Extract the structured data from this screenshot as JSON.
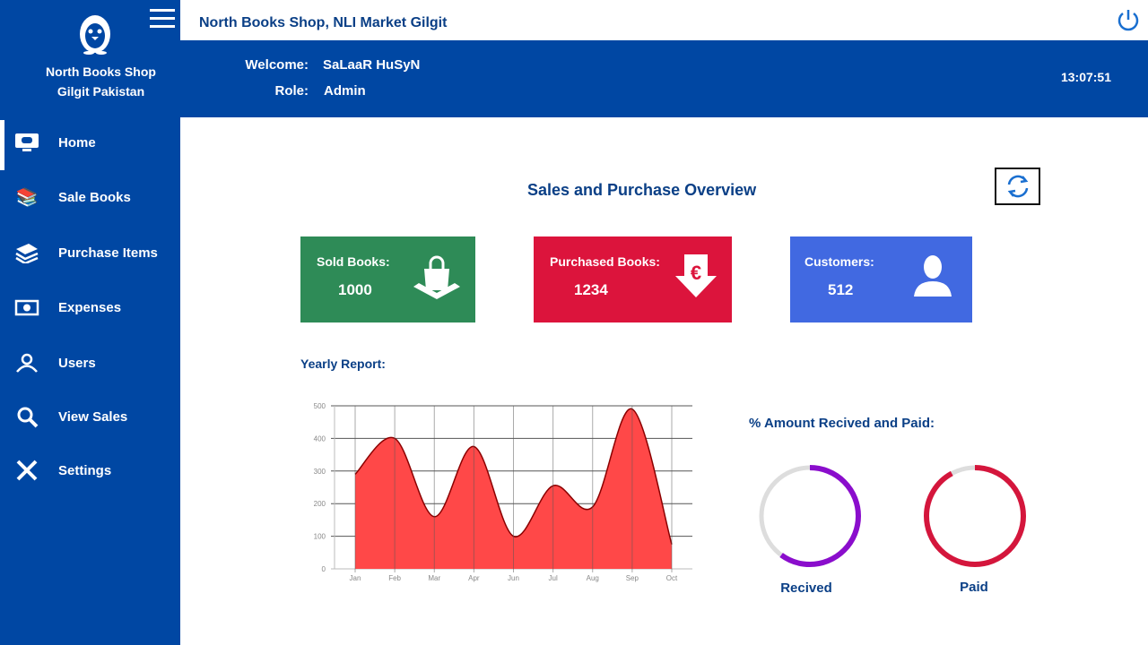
{
  "sidebar": {
    "brand_line1": "North Books Shop",
    "brand_line2": "Gilgit Pakistan",
    "items": [
      {
        "label": "Home",
        "icon": "monitor-icon"
      },
      {
        "label": "Sale Books",
        "icon": "books-icon"
      },
      {
        "label": "Purchase Items",
        "icon": "book-stack-icon"
      },
      {
        "label": "Expenses",
        "icon": "money-icon"
      },
      {
        "label": "Users",
        "icon": "users-icon"
      },
      {
        "label": "View Sales",
        "icon": "search-icon"
      },
      {
        "label": "Settings",
        "icon": "tools-icon"
      }
    ]
  },
  "topbar": {
    "shop_name": "North Books Shop, NLI Market Gilgit"
  },
  "header": {
    "welcome_label": "Welcome:",
    "welcome_value": "SaLaaR HuSyN",
    "role_label": "Role:",
    "role_value": "Admin",
    "time": "13:07:51"
  },
  "main": {
    "title": "Sales and Purchase Overview",
    "cards": [
      {
        "label": "Sold Books:",
        "value": "1000",
        "color": "#2e8b57"
      },
      {
        "label": "Purchased Books:",
        "value": "1234",
        "color": "#dc143c"
      },
      {
        "label": "Customers:",
        "value": "512",
        "color": "#4169e1"
      }
    ],
    "yearly_label": "Yearly Report:",
    "amount_label": "% Amount Recived and Paid:",
    "donuts": [
      {
        "label": "Recived",
        "percent": 60,
        "color": "#8a0dcc"
      },
      {
        "label": "Paid",
        "percent": 92,
        "color": "#d4163c"
      }
    ]
  },
  "chart_data": {
    "type": "area",
    "categories": [
      "Jan",
      "Feb",
      "Mar",
      "Apr",
      "Jun",
      "Jul",
      "Aug",
      "Sep",
      "Oct"
    ],
    "values": [
      290,
      400,
      160,
      375,
      100,
      255,
      190,
      490,
      75
    ],
    "yticks": [
      "0",
      "100",
      "200",
      "300",
      "400",
      "500"
    ],
    "ylim": [
      0,
      500
    ],
    "grid": true,
    "color": "#ff4848"
  }
}
